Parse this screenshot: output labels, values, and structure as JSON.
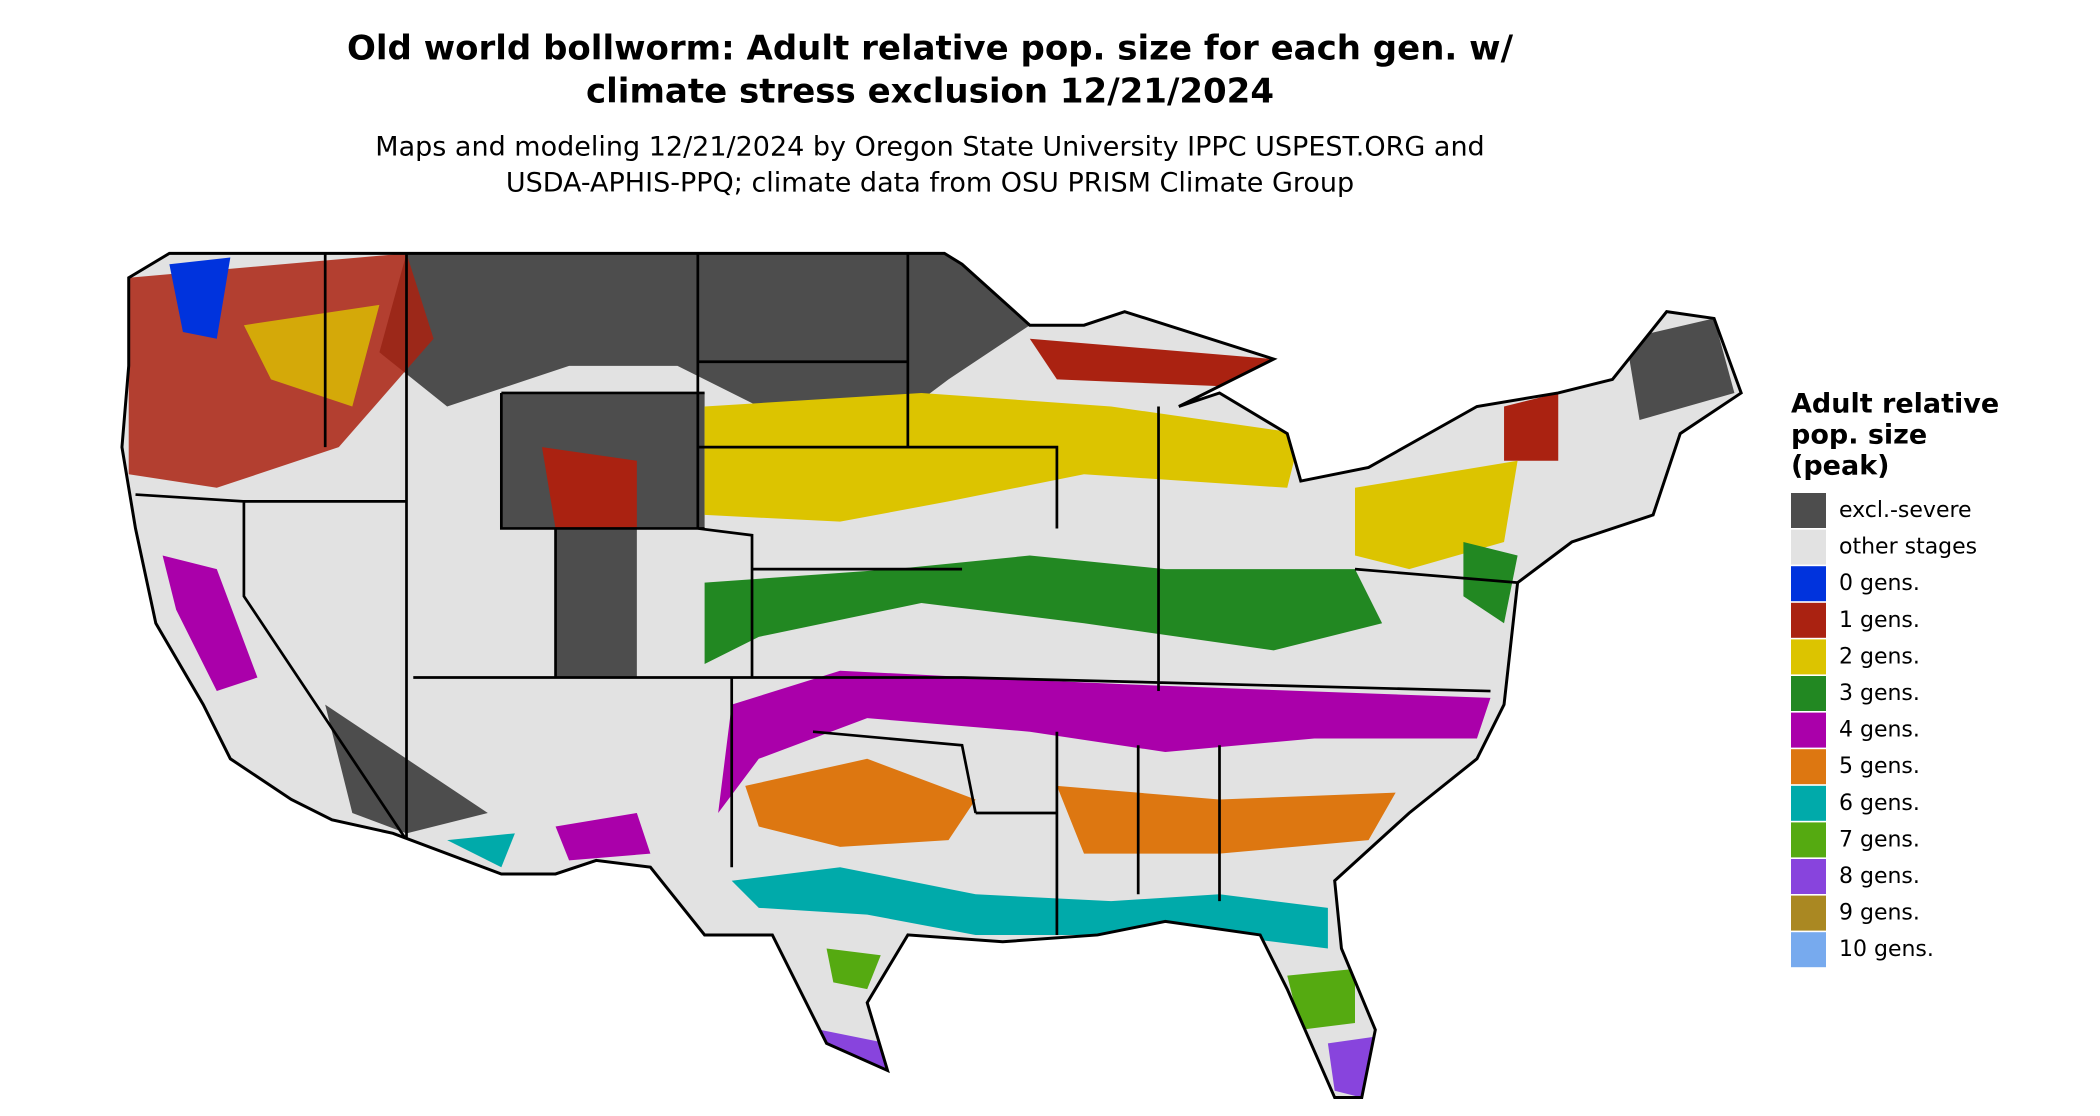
{
  "title_lines": [
    "Old world bollworm: Adult relative pop. size for each gen. w/",
    "climate stress exclusion 12/21/2024"
  ],
  "subtitle_lines": [
    "Maps and modeling 12/21/2024 by Oregon State University IPPC USPEST.ORG and",
    "USDA-APHIS-PPQ; climate data from OSU PRISM Climate Group"
  ],
  "legend": {
    "title_lines": [
      "Adult relative",
      "pop. size",
      "(peak)"
    ],
    "items": [
      {
        "label": "excl.-severe",
        "color": "#4d4d4d"
      },
      {
        "label": "other stages",
        "color": "#e2e2e2"
      },
      {
        "label": "0 gens.",
        "color": "#0033dd"
      },
      {
        "label": "1 gens.",
        "color": "#aa2211"
      },
      {
        "label": "2 gens.",
        "color": "#dcc400"
      },
      {
        "label": "3 gens.",
        "color": "#228822"
      },
      {
        "label": "4 gens.",
        "color": "#aa00aa"
      },
      {
        "label": "5 gens.",
        "color": "#dd7711"
      },
      {
        "label": "6 gens.",
        "color": "#00aaaa"
      },
      {
        "label": "7 gens.",
        "color": "#55aa11"
      },
      {
        "label": "8 gens.",
        "color": "#8844dd"
      },
      {
        "label": "9 gens.",
        "color": "#aa8822"
      },
      {
        "label": "10 gens.",
        "color": "#77aaee"
      }
    ]
  }
}
